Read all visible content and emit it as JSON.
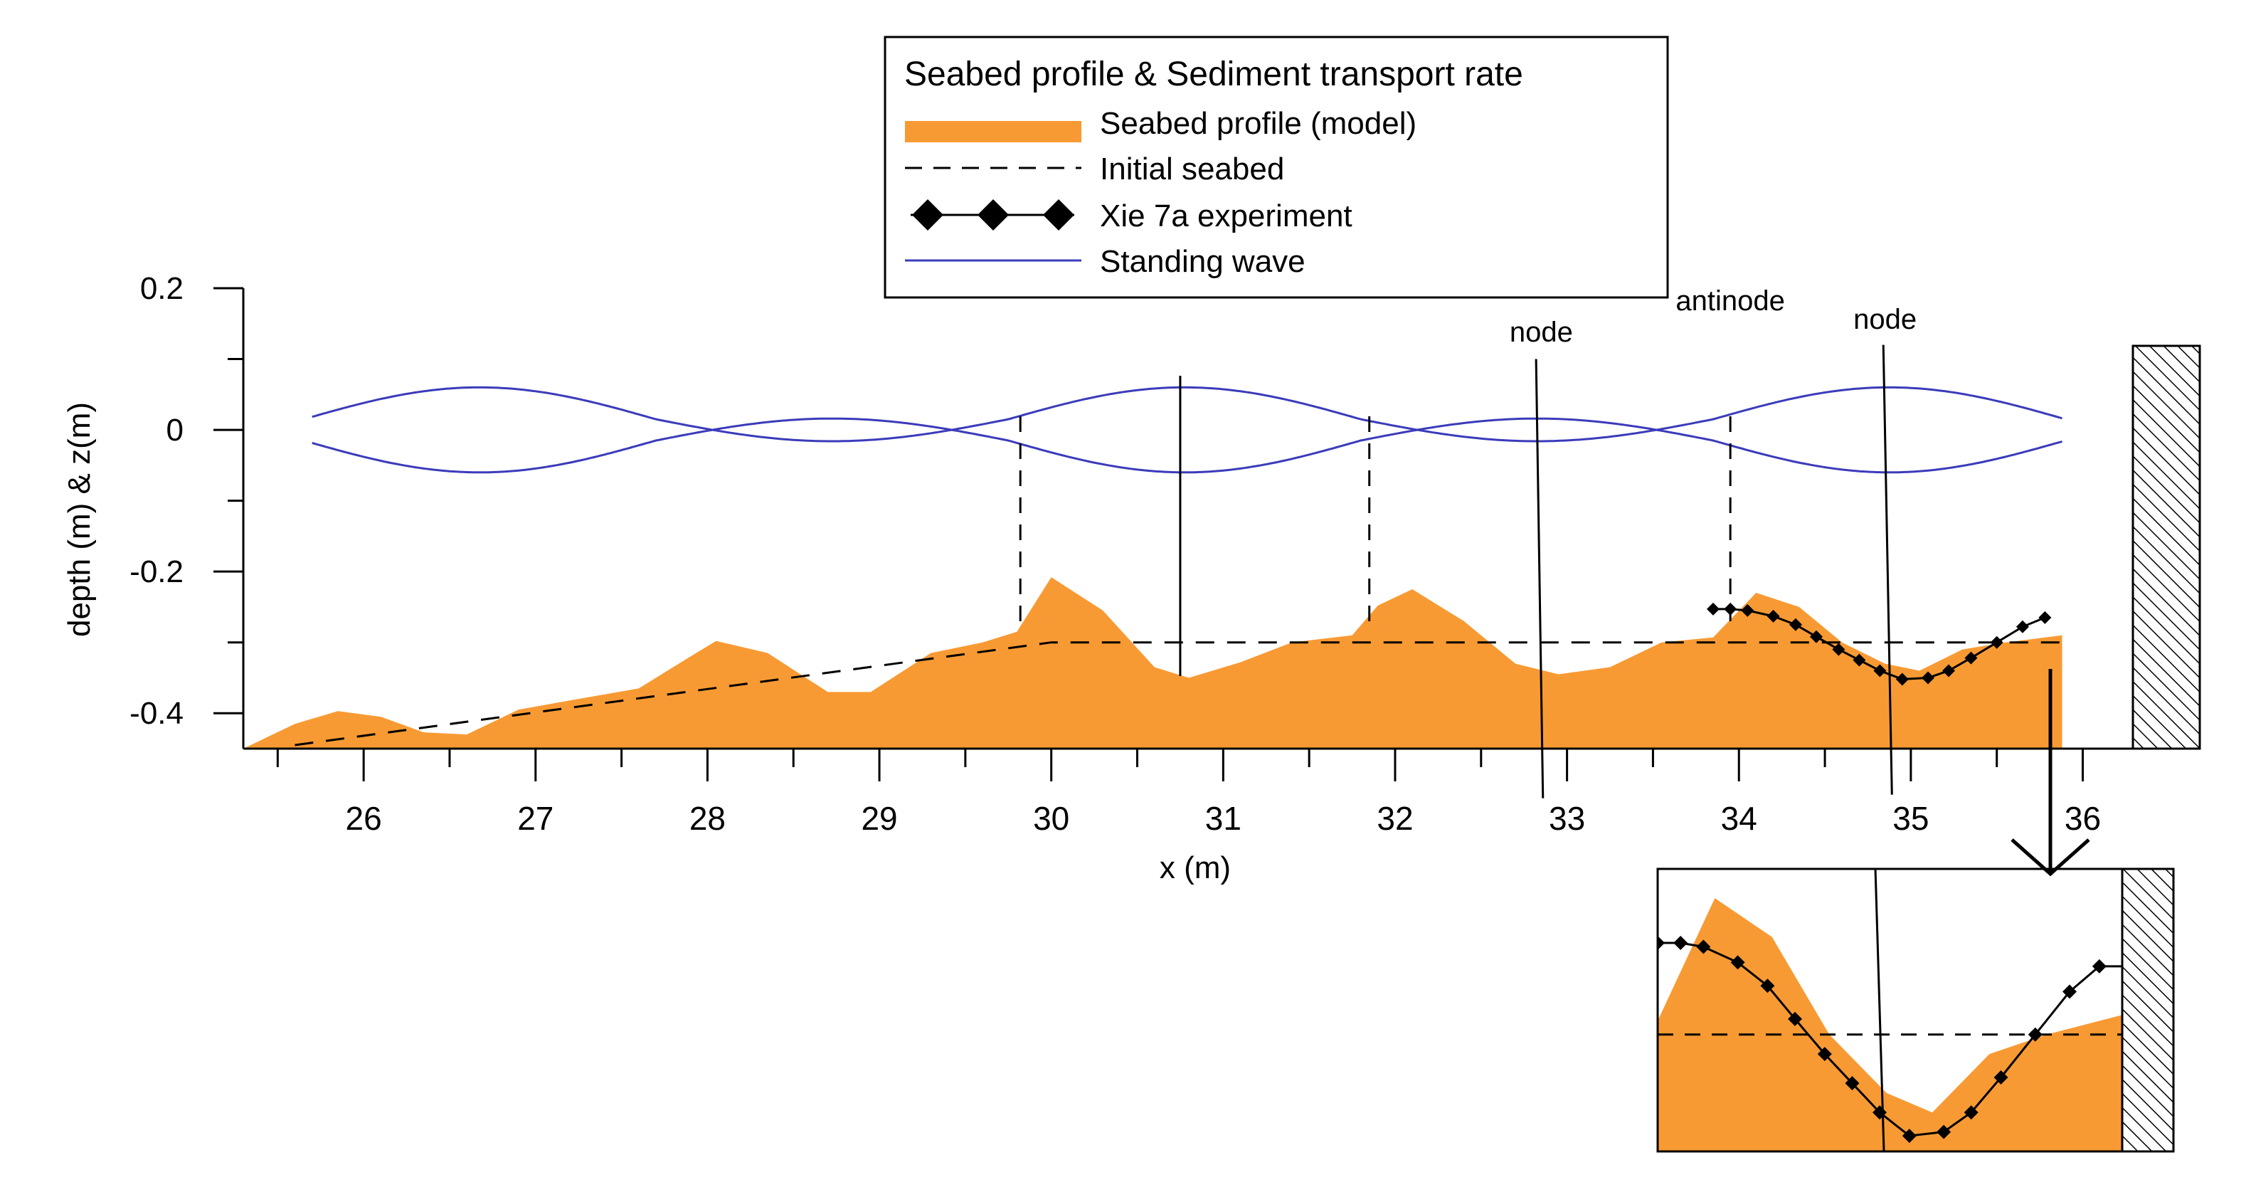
{
  "chart_data": {
    "type": "area",
    "xlabel": "x (m)",
    "ylabel": "depth (m) & z(m)",
    "xlim": [
      25.3,
      36.3
    ],
    "ylim": [
      -0.45,
      0.2
    ],
    "x_ticks": [
      26,
      27,
      28,
      29,
      30,
      31,
      32,
      33,
      34,
      35,
      36
    ],
    "y_ticks": [
      0.2,
      0,
      -0.2,
      -0.4
    ],
    "y_tick_labels": [
      "0.2",
      "0",
      "-0.2",
      "-0.4"
    ],
    "legend": {
      "title": "Seabed profile & Sediment transport rate",
      "entries": [
        {
          "label": "Seabed profile (model)",
          "style": "area"
        },
        {
          "label": "Initial seabed",
          "style": "dashed"
        },
        {
          "label": "Xie 7a experiment",
          "style": "line-diamond"
        },
        {
          "label": "Standing wave",
          "style": "line"
        }
      ]
    },
    "colors": {
      "seabed": "#f89a33",
      "wave": "#3b3bbb",
      "line": "#000000"
    },
    "annotations": [
      {
        "text": "node",
        "x": 32.85
      },
      {
        "text": "antinode",
        "x": 33.95
      },
      {
        "text": "node",
        "x": 34.85
      }
    ],
    "seabed_profile": {
      "x": [
        25.3,
        25.6,
        25.85,
        26.1,
        26.35,
        26.6,
        26.9,
        27.2,
        27.6,
        27.9,
        28.05,
        28.35,
        28.7,
        28.95,
        29.3,
        29.6,
        29.8,
        30.0,
        30.3,
        30.6,
        30.8,
        31.1,
        31.4,
        31.75,
        31.9,
        32.1,
        32.4,
        32.7,
        32.95,
        33.25,
        33.55,
        33.85,
        34.1,
        34.35,
        34.6,
        34.85,
        35.05,
        35.3,
        35.55,
        35.88
      ],
      "y": [
        -0.45,
        -0.415,
        -0.397,
        -0.405,
        -0.427,
        -0.43,
        -0.395,
        -0.382,
        -0.365,
        -0.32,
        -0.298,
        -0.315,
        -0.37,
        -0.37,
        -0.315,
        -0.3,
        -0.285,
        -0.208,
        -0.255,
        -0.335,
        -0.35,
        -0.328,
        -0.3,
        -0.29,
        -0.248,
        -0.225,
        -0.27,
        -0.33,
        -0.345,
        -0.335,
        -0.3,
        -0.293,
        -0.23,
        -0.25,
        -0.3,
        -0.33,
        -0.34,
        -0.31,
        -0.3,
        -0.29
      ]
    },
    "initial_seabed": {
      "x": [
        25.6,
        30.0,
        35.88
      ],
      "y": [
        -0.445,
        -0.3,
        -0.3
      ]
    },
    "experiment": {
      "name": "Xie 7a experiment",
      "x": [
        33.85,
        33.95,
        34.05,
        34.2,
        34.33,
        34.45,
        34.58,
        34.7,
        34.82,
        34.95,
        35.1,
        35.22,
        35.35,
        35.5,
        35.65,
        35.78
      ],
      "y": [
        -0.253,
        -0.253,
        -0.255,
        -0.263,
        -0.275,
        -0.292,
        -0.31,
        -0.325,
        -0.34,
        -0.352,
        -0.35,
        -0.34,
        -0.322,
        -0.3,
        -0.278,
        -0.265
      ]
    },
    "standing_wave": {
      "x_start": 25.7,
      "x_end": 35.88,
      "node_x": 33.85,
      "wavelength": 4.1,
      "upper_amplitude": 0.045,
      "lower_amplitude": 0.031,
      "offset": 0.015
    },
    "vertical_markers": {
      "antinode_dashed_x": [
        29.82,
        31.85,
        33.95
      ],
      "node_solid_x": [
        30.75
      ]
    },
    "node_lines": [
      {
        "x_top": 32.82,
        "y_top": 0.1,
        "x_bottom": 32.86,
        "y_bottom": -0.52
      },
      {
        "x_top": 34.84,
        "y_top": 0.12,
        "x_bottom": 34.89,
        "y_bottom": -0.515
      }
    ],
    "inset": {
      "xlim": [
        33.85,
        35.88
      ],
      "ylim": [
        -0.36,
        -0.215
      ],
      "node_x": 34.82
    }
  }
}
